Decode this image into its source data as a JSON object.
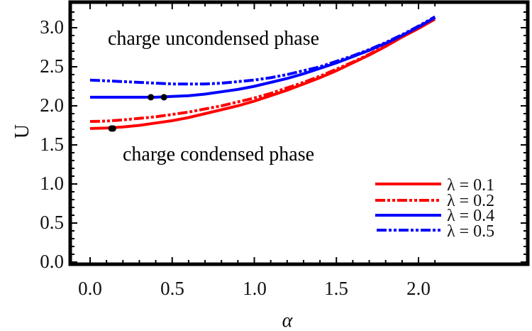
{
  "chart_data": {
    "type": "line",
    "title": "",
    "xlabel": "α",
    "ylabel": "U",
    "xlim": [
      -0.03,
      2.12
    ],
    "ylim": [
      -0.02,
      3.3
    ],
    "xticks": [
      0.0,
      0.5,
      1.0,
      1.5,
      2.0
    ],
    "xtick_labels": [
      "0.0",
      "0.5",
      "1.0",
      "1.5",
      "2.0"
    ],
    "yticks": [
      0.0,
      0.5,
      1.0,
      1.5,
      2.0,
      2.5,
      3.0
    ],
    "ytick_labels": [
      "0.0",
      "0.5",
      "1.0",
      "1.5",
      "2.0",
      "2.5",
      "3.0"
    ],
    "grid": false,
    "legend_position": "lower right",
    "annotations": [
      {
        "text": "charge uncondensed phase",
        "x": 0.14,
        "y": 2.87
      },
      {
        "text": "charge condensed phase",
        "x": 0.2,
        "y": 1.45
      }
    ],
    "series": [
      {
        "name": "λ = 0.1",
        "color": "#ff0000",
        "dash": "solid",
        "x": [
          0.0,
          0.1,
          0.2,
          0.3,
          0.4,
          0.5,
          0.6,
          0.7,
          0.8,
          0.9,
          1.0,
          1.1,
          1.2,
          1.3,
          1.4,
          1.5,
          1.6,
          1.7,
          1.8,
          1.9,
          2.0,
          2.1
        ],
        "y": [
          1.71,
          1.715,
          1.73,
          1.75,
          1.78,
          1.81,
          1.85,
          1.9,
          1.95,
          2.0,
          2.06,
          2.13,
          2.2,
          2.28,
          2.36,
          2.45,
          2.55,
          2.65,
          2.76,
          2.88,
          2.99,
          3.11
        ]
      },
      {
        "name": "λ = 0.2",
        "color": "#ff0000",
        "dash": "dash-dot-dot",
        "x": [
          0.0,
          0.1,
          0.2,
          0.3,
          0.4,
          0.5,
          0.6,
          0.7,
          0.8,
          0.9,
          1.0,
          1.1,
          1.2,
          1.3,
          1.4,
          1.5,
          1.6,
          1.7,
          1.8,
          1.9,
          2.0,
          2.1
        ],
        "y": [
          1.8,
          1.805,
          1.82,
          1.84,
          1.86,
          1.89,
          1.92,
          1.96,
          2.0,
          2.05,
          2.1,
          2.16,
          2.23,
          2.3,
          2.38,
          2.47,
          2.56,
          2.66,
          2.77,
          2.89,
          3.0,
          3.13
        ]
      },
      {
        "name": "λ = 0.4",
        "color": "#0000ff",
        "dash": "solid",
        "x": [
          0.0,
          0.1,
          0.2,
          0.3,
          0.4,
          0.5,
          0.6,
          0.7,
          0.8,
          0.9,
          1.0,
          1.1,
          1.2,
          1.3,
          1.4,
          1.5,
          1.6,
          1.7,
          1.8,
          1.9,
          2.0,
          2.1
        ],
        "y": [
          2.11,
          2.11,
          2.11,
          2.11,
          2.11,
          2.12,
          2.13,
          2.15,
          2.18,
          2.21,
          2.25,
          2.3,
          2.35,
          2.41,
          2.48,
          2.55,
          2.63,
          2.71,
          2.8,
          2.9,
          3.01,
          3.13
        ]
      },
      {
        "name": "λ = 0.5",
        "color": "#0000ff",
        "dash": "dash-dot-dot",
        "x": [
          0.0,
          0.1,
          0.2,
          0.3,
          0.4,
          0.5,
          0.6,
          0.7,
          0.8,
          0.9,
          1.0,
          1.1,
          1.2,
          1.3,
          1.4,
          1.5,
          1.6,
          1.7,
          1.8,
          1.9,
          2.0,
          2.1
        ],
        "y": [
          2.33,
          2.32,
          2.31,
          2.3,
          2.29,
          2.28,
          2.28,
          2.28,
          2.29,
          2.31,
          2.33,
          2.36,
          2.4,
          2.45,
          2.5,
          2.57,
          2.64,
          2.72,
          2.81,
          2.91,
          3.02,
          3.14
        ]
      }
    ],
    "markers": [
      {
        "x": 0.13,
        "y": 1.71,
        "color": "#000000"
      },
      {
        "x": 0.14,
        "y": 1.71,
        "color": "#000000"
      },
      {
        "x": 0.37,
        "y": 2.11,
        "color": "#000000"
      },
      {
        "x": 0.45,
        "y": 2.11,
        "color": "#000000"
      }
    ]
  },
  "labels": {
    "xlabel": "α",
    "ylabel": "U",
    "annot_upper": "charge uncondensed phase",
    "annot_lower": "charge condensed phase",
    "legend": [
      "λ = 0.1",
      "λ = 0.2",
      "λ = 0.4",
      "λ = 0.5"
    ],
    "xticks": [
      "0.0",
      "0.5",
      "1.0",
      "1.5",
      "2.0"
    ],
    "yticks": [
      "0.0",
      "0.5",
      "1.0",
      "1.5",
      "2.0",
      "2.5",
      "3.0"
    ]
  }
}
